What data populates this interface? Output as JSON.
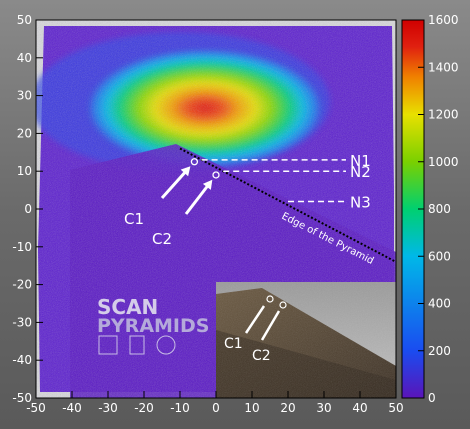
{
  "chart_data": {
    "type": "heatmap",
    "title": "",
    "xlabel": "",
    "ylabel": "",
    "xlim": [
      -50,
      50
    ],
    "ylim": [
      -50,
      50
    ],
    "x_ticks": [
      "-50",
      "-40",
      "-30",
      "-20",
      "-10",
      "0",
      "10",
      "20",
      "30",
      "40",
      "50"
    ],
    "y_ticks": [
      "-50",
      "-40",
      "-30",
      "-20",
      "-10",
      "0",
      "10",
      "20",
      "30",
      "40",
      "50"
    ],
    "colorbar": {
      "min": 0,
      "max": 1600,
      "ticks": [
        "0",
        "200",
        "400",
        "600",
        "800",
        "1000",
        "1200",
        "1400",
        "1600"
      ],
      "colors": [
        "#5a14b8",
        "#1a4cf0",
        "#00b8e8",
        "#00d070",
        "#7ad000",
        "#e8e000",
        "#f08000",
        "#e02010",
        "#d00000"
      ]
    },
    "peak": {
      "x": 1,
      "y": 20,
      "value": 1600
    },
    "pyramid_edge": {
      "from": [
        -10,
        16
      ],
      "to": [
        50,
        -14
      ],
      "label": "Edge of the Pyramid"
    },
    "points": [
      {
        "label": "C1",
        "x": -6,
        "y": 12.5
      },
      {
        "label": "C2",
        "x": 0,
        "y": 9
      }
    ],
    "levels": [
      {
        "label": "N1",
        "y": 13
      },
      {
        "label": "N2",
        "y": 10
      },
      {
        "label": "N3",
        "y": 2
      }
    ],
    "inset": {
      "logo": {
        "line1": "SCAN",
        "line2": "PYRAMIDS"
      },
      "points": [
        "C1",
        "C2"
      ]
    }
  }
}
